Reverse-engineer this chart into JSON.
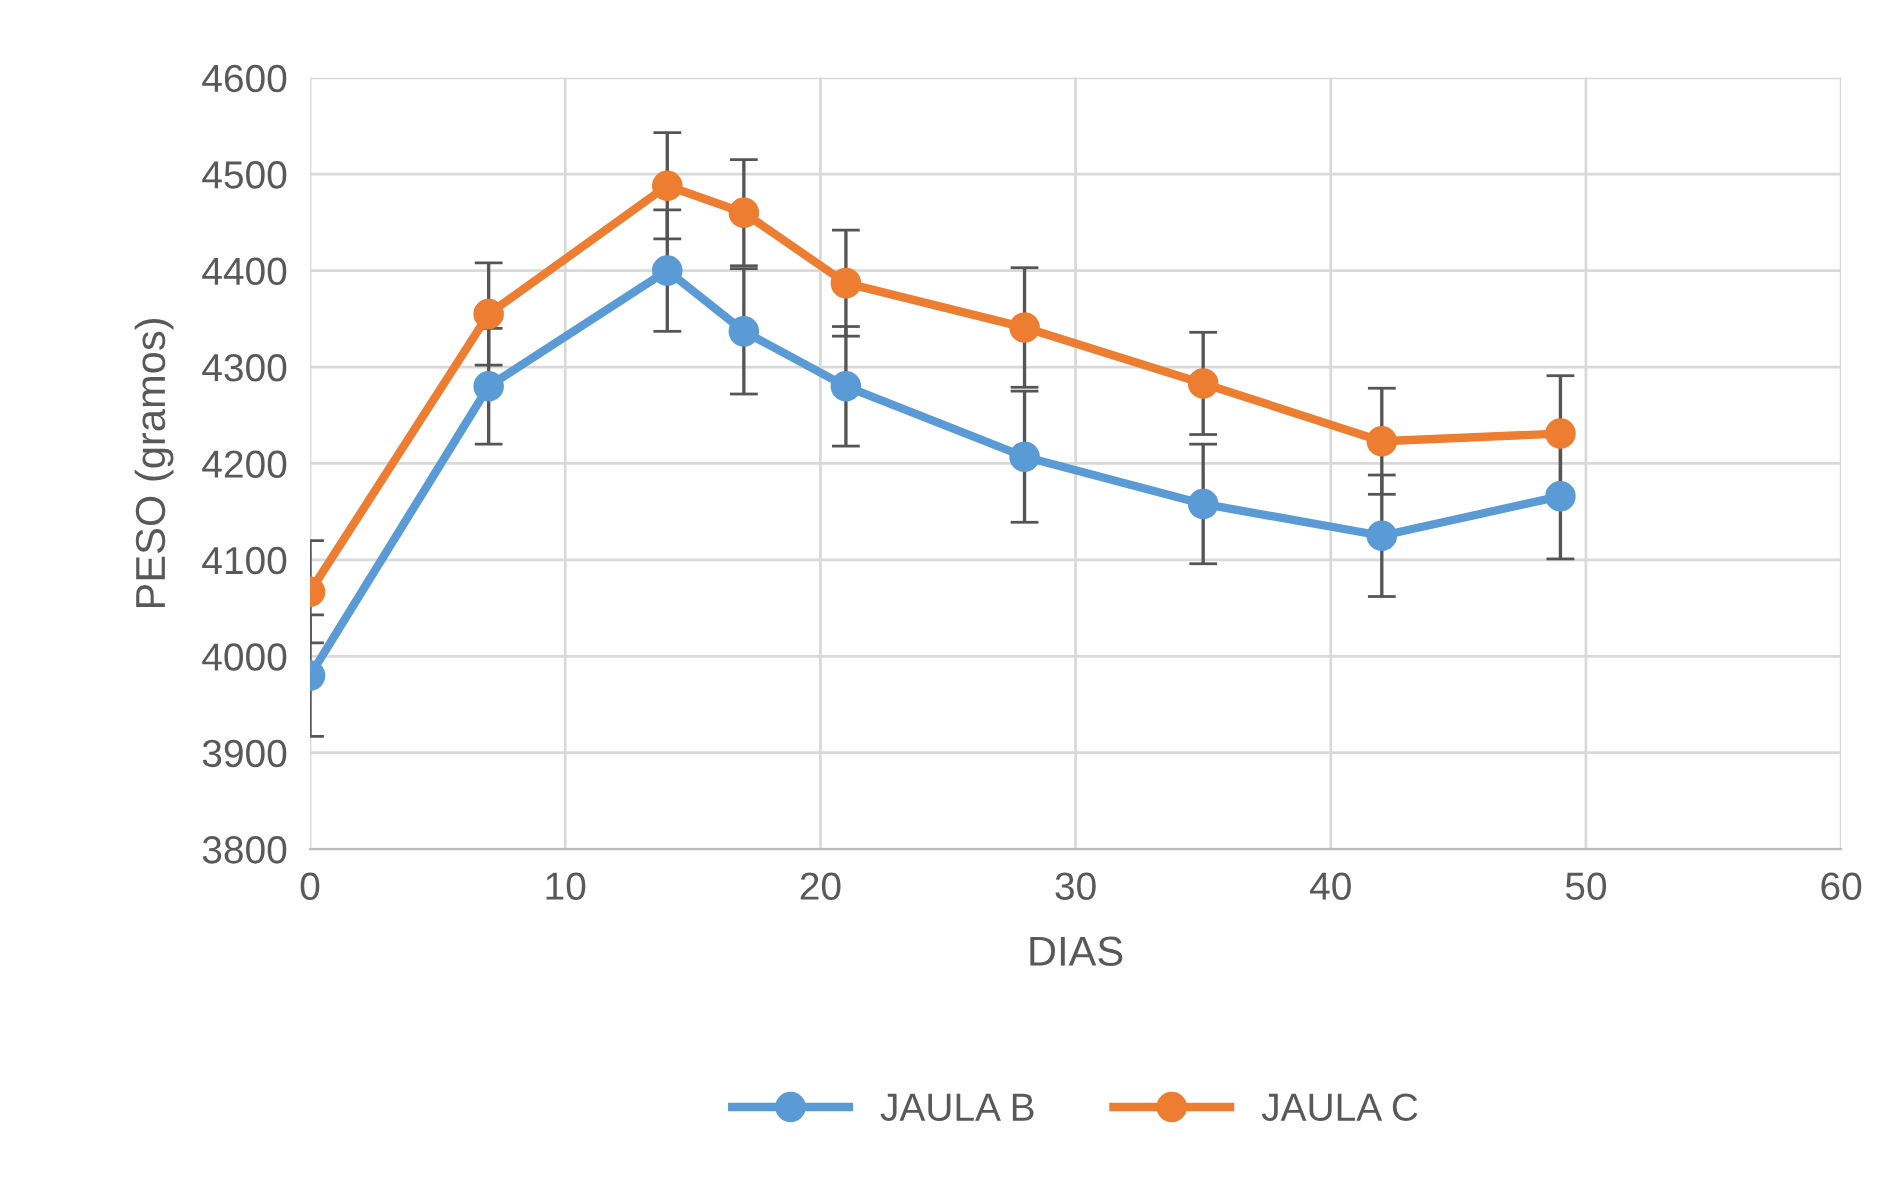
{
  "chart_data": {
    "type": "line",
    "xlabel": "DIAS",
    "ylabel": "PESO (gramos)",
    "x": [
      0,
      7,
      14,
      17,
      21,
      28,
      35,
      42,
      49
    ],
    "series": [
      {
        "name": "JAULA B",
        "color": "#5b9bd5",
        "values": [
          3980,
          4280,
          4400,
          4337,
          4280,
          4207,
          4158,
          4125,
          4166
        ],
        "errors": [
          63,
          60,
          63,
          65,
          62,
          68,
          62,
          63,
          65
        ]
      },
      {
        "name": "JAULA C",
        "color": "#ed7d31",
        "values": [
          4067,
          4355,
          4488,
          4460,
          4387,
          4341,
          4283,
          4223,
          4231
        ],
        "errors": [
          53,
          53,
          55,
          55,
          55,
          62,
          53,
          55,
          60
        ]
      }
    ],
    "xlim": [
      0,
      60
    ],
    "xticks": [
      0,
      10,
      20,
      30,
      40,
      50,
      60
    ],
    "ylim": [
      3800,
      4600
    ],
    "yticks": [
      3800,
      3900,
      4000,
      4100,
      4200,
      4300,
      4400,
      4500,
      4600
    ],
    "grid": true,
    "legend": "bottom",
    "marker": "circle",
    "line_style": "solid"
  }
}
